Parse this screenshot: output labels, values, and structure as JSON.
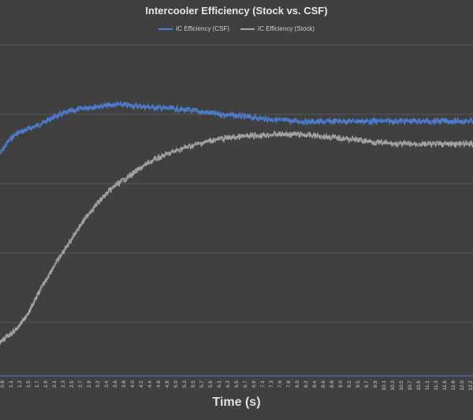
{
  "chart_data": {
    "type": "line",
    "title": "Intercooler Efficiency (Stock vs. CSF)",
    "xlabel": "Time (s)",
    "ylabel": "",
    "x_tick_labels": [
      "0.8",
      "1.1",
      "1.3",
      "1.5",
      "1.7",
      "1.9",
      "2.1",
      "2.3",
      "2.5",
      "2.7",
      "2.9",
      "3.2",
      "3.4",
      "3.6",
      "3.8",
      "4.0",
      "4.2",
      "4.4",
      "4.6",
      "4.8",
      "5.0",
      "5.3",
      "5.5",
      "5.7",
      "5.9",
      "6.1",
      "6.3",
      "6.5",
      "6.7",
      "6.9",
      "7.1",
      "7.3",
      "7.6",
      "7.8",
      "8.0",
      "8.2",
      "8.4",
      "8.6",
      "8.8",
      "9.0",
      "9.2",
      "9.5",
      "9.7",
      "9.9",
      "10.1",
      "10.3",
      "10.5",
      "10.7",
      "10.9",
      "11.1",
      "11.3",
      "11.6",
      "11.8",
      "12.0",
      "12.2"
    ],
    "xlim": [
      0.8,
      12.3
    ],
    "grid": true,
    "legend_position": "top",
    "series": [
      {
        "name": "IC Efficiency (CSF)",
        "color": "#4a7fd4",
        "x": [
          0.8,
          1.0,
          1.2,
          1.5,
          1.8,
          2.1,
          2.5,
          2.9,
          3.3,
          3.7,
          4.1,
          4.5,
          5.0,
          5.5,
          6.0,
          6.5,
          7.0,
          7.5,
          8.0,
          8.5,
          9.0,
          9.5,
          10.0,
          10.5,
          11.0,
          11.5,
          12.0,
          12.3
        ],
        "y": [
          0.43,
          0.61,
          0.72,
          0.79,
          0.86,
          0.96,
          1.04,
          1.1,
          1.12,
          1.14,
          1.12,
          1.1,
          1.08,
          1.05,
          1.01,
          0.98,
          0.95,
          0.92,
          0.9,
          0.89,
          0.9,
          0.9,
          0.9,
          0.9,
          0.9,
          0.9,
          0.9,
          0.9
        ]
      },
      {
        "name": "IC Efficiency (Stock)",
        "color": "#a6a6a6",
        "x": [
          0.8,
          1.0,
          1.2,
          1.5,
          1.8,
          2.1,
          2.4,
          2.7,
          3.0,
          3.3,
          3.6,
          4.0,
          4.4,
          4.8,
          5.2,
          5.6,
          6.0,
          6.5,
          7.0,
          7.5,
          8.0,
          8.5,
          9.0,
          9.5,
          10.0,
          10.5,
          11.0,
          11.5,
          12.0,
          12.3
        ],
        "y": [
          -2.3,
          -2.19,
          -2.1,
          -1.86,
          -1.51,
          -1.2,
          -0.93,
          -0.65,
          -0.4,
          -0.2,
          -0.03,
          0.13,
          0.3,
          0.41,
          0.5,
          0.57,
          0.63,
          0.67,
          0.69,
          0.71,
          0.71,
          0.69,
          0.66,
          0.63,
          0.59,
          0.57,
          0.57,
          0.57,
          0.57,
          0.57
        ]
      }
    ]
  }
}
